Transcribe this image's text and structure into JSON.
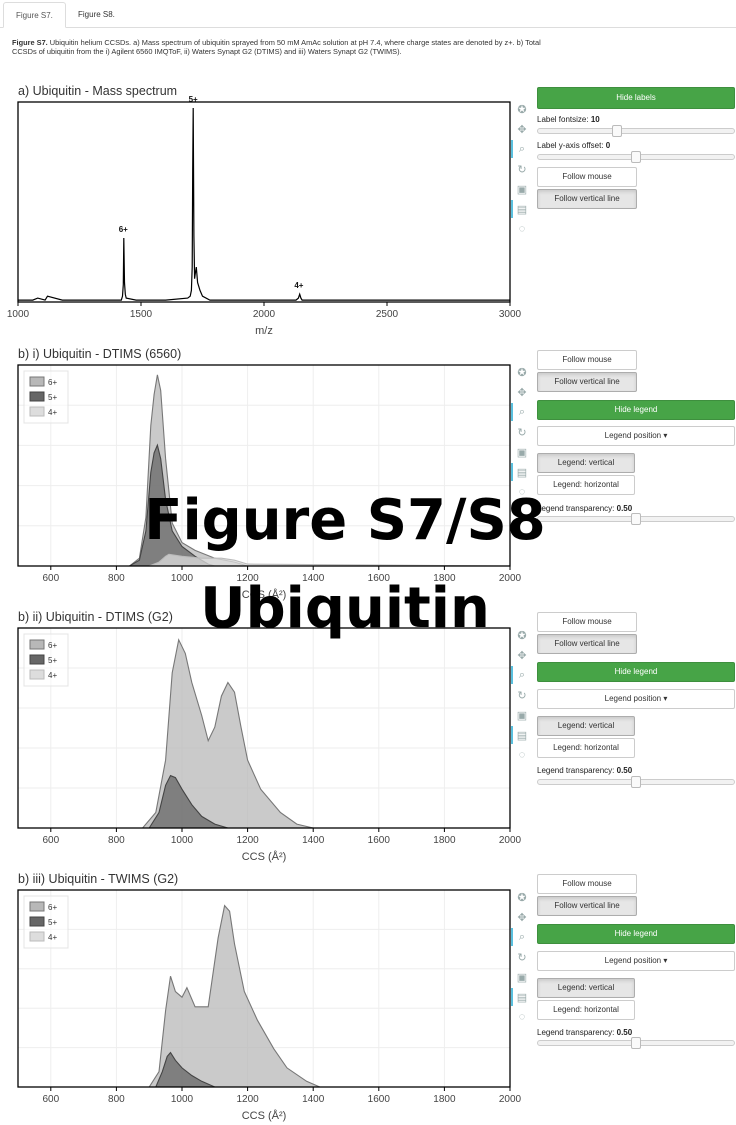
{
  "tabs": [
    {
      "label": "Figure S7."
    },
    {
      "label": "Figure S8."
    }
  ],
  "caption": {
    "bold": "Figure S7.",
    "text": " Ubiquitin helium CCSDs. a) Mass spectrum of ubiquitin sprayed from 50 mM AmAc solution at pH 7.4, where charge states are denoted by z+. b) Total CCSDs of ubiquitin from the i) Agilent 6560 IMQToF, ii) Waters Synapt G2 (DTIMS) and iii) Waters Synapt G2 (TWIMS)."
  },
  "overlay": {
    "line1": "Figure S7/S8",
    "line2": "Ubiquitin"
  },
  "colors": {
    "green": "#47a447",
    "legend_6": "#b8b8b8",
    "legend_5": "#666666",
    "legend_4": "#dddddd",
    "ms_line": "#000000"
  },
  "panels": [
    {
      "title": "a) Ubiquitin - Mass spectrum",
      "controls": {
        "hide_labels": "Hide labels",
        "fontsize_label": "Label fontsize:",
        "fontsize_value": "10",
        "yoffset_label": "Label y-axis offset:",
        "yoffset_value": "0",
        "follow_mouse": "Follow mouse",
        "follow_vertical": "Follow vertical line"
      }
    },
    {
      "title": "b) i) Ubiquitin - DTIMS (6560)",
      "controls": {
        "follow_mouse": "Follow mouse",
        "follow_vertical": "Follow vertical line",
        "hide_legend": "Hide legend",
        "legend_position": "Legend position",
        "legend_vertical": "Legend: vertical",
        "legend_horizontal": "Legend: horizontal",
        "transparency_label": "Legend transparency:",
        "transparency_value": "0.50"
      }
    },
    {
      "title": "b) ii) Ubiquitin - DTIMS (G2)",
      "controls": {
        "follow_mouse": "Follow mouse",
        "follow_vertical": "Follow vertical line",
        "hide_legend": "Hide legend",
        "legend_position": "Legend position",
        "legend_vertical": "Legend: vertical",
        "legend_horizontal": "Legend: horizontal",
        "transparency_label": "Legend transparency:",
        "transparency_value": "0.50"
      }
    },
    {
      "title": "b) iii) Ubiquitin - TWIMS (G2)",
      "controls": {
        "follow_mouse": "Follow mouse",
        "follow_vertical": "Follow vertical line",
        "hide_legend": "Hide legend",
        "legend_position": "Legend position",
        "legend_vertical": "Legend: vertical",
        "legend_horizontal": "Legend: horizontal",
        "transparency_label": "Legend transparency:",
        "transparency_value": "0.50"
      }
    }
  ],
  "chart_data": [
    {
      "type": "line",
      "title": "a) Ubiquitin - Mass spectrum",
      "xlabel": "m/z",
      "ylabel": "",
      "xlim": [
        1000,
        3000
      ],
      "ylim": [
        0,
        100
      ],
      "xticks": [
        1000,
        1500,
        2000,
        2500,
        3000
      ],
      "grid": false,
      "x": [
        1000,
        1060,
        1080,
        1110,
        1120,
        1180,
        1300,
        1400,
        1420,
        1425,
        1428,
        1430,
        1433,
        1436,
        1440,
        1480,
        1600,
        1690,
        1700,
        1705,
        1708,
        1710,
        1712,
        1715,
        1718,
        1720,
        1725,
        1730,
        1740,
        1750,
        1780,
        1900,
        2100,
        2130,
        2140,
        2145,
        2150,
        2155,
        2160,
        2190,
        2400,
        2600,
        2800,
        3000
      ],
      "y": [
        1,
        1,
        2,
        1,
        3,
        1,
        1,
        1,
        1,
        3,
        9,
        33,
        10,
        4,
        2,
        1,
        1,
        2,
        3,
        6,
        18,
        68,
        100,
        34,
        12,
        14,
        18,
        10,
        6,
        3,
        1,
        1,
        1,
        1,
        2,
        4,
        2,
        1,
        1,
        1,
        1,
        1,
        1,
        1
      ],
      "annotations": [
        {
          "label": "6+",
          "x": 1428,
          "y": 33
        },
        {
          "label": "5+",
          "x": 1712,
          "y": 100
        },
        {
          "label": "4+",
          "x": 2142,
          "y": 4
        }
      ]
    },
    {
      "type": "area",
      "title": "b) i) Ubiquitin - DTIMS (6560)",
      "xlabel": "CCS (Å²)",
      "ylabel": "",
      "xlim": [
        500,
        2000
      ],
      "ylim": [
        0,
        100
      ],
      "xticks": [
        600,
        800,
        1000,
        1200,
        1400,
        1600,
        1800,
        2000
      ],
      "grid": true,
      "legend_position": "top-left",
      "series": [
        {
          "name": "6+",
          "x": [
            500,
            840,
            870,
            890,
            905,
            915,
            925,
            935,
            950,
            970,
            1000,
            1040,
            1100,
            1160,
            1200,
            2000
          ],
          "y": [
            0,
            0,
            4,
            25,
            72,
            88,
            98,
            90,
            55,
            22,
            12,
            8,
            4,
            2,
            0,
            0
          ]
        },
        {
          "name": "5+",
          "x": [
            500,
            840,
            870,
            890,
            905,
            915,
            925,
            935,
            950,
            970,
            1000,
            1040,
            1080,
            1100,
            2000
          ],
          "y": [
            0,
            0,
            3,
            18,
            48,
            58,
            62,
            55,
            34,
            18,
            10,
            5,
            1,
            0,
            0
          ]
        },
        {
          "name": "4+",
          "x": [
            500,
            900,
            930,
            950,
            960,
            1000,
            1060,
            1120,
            1160,
            1200,
            2000
          ],
          "y": [
            0,
            0,
            2,
            5,
            6,
            5,
            4,
            4,
            3,
            1,
            0
          ]
        }
      ]
    },
    {
      "type": "area",
      "title": "b) ii) Ubiquitin - DTIMS (G2)",
      "xlabel": "CCS (Å²)",
      "ylabel": "",
      "xlim": [
        500,
        2000
      ],
      "ylim": [
        0,
        100
      ],
      "xticks": [
        600,
        800,
        1000,
        1200,
        1400,
        1600,
        1800,
        2000
      ],
      "grid": true,
      "legend_position": "top-left",
      "series": [
        {
          "name": "6+",
          "x": [
            500,
            880,
            920,
            950,
            970,
            990,
            1010,
            1030,
            1060,
            1080,
            1100,
            1120,
            1140,
            1160,
            1180,
            1200,
            1240,
            1300,
            1350,
            1400,
            2000
          ],
          "y": [
            0,
            0,
            8,
            35,
            80,
            97,
            90,
            75,
            58,
            45,
            52,
            68,
            75,
            70,
            52,
            35,
            20,
            8,
            2,
            0,
            0
          ]
        },
        {
          "name": "5+",
          "x": [
            500,
            900,
            930,
            950,
            965,
            980,
            1000,
            1030,
            1060,
            1100,
            1140,
            2000
          ],
          "y": [
            0,
            0,
            8,
            22,
            27,
            26,
            20,
            12,
            6,
            2,
            0,
            0
          ]
        },
        {
          "name": "4+",
          "x": [
            500,
            2000
          ],
          "y": [
            0,
            0
          ]
        }
      ]
    },
    {
      "type": "area",
      "title": "b) iii) Ubiquitin - TWIMS (G2)",
      "xlabel": "CCS (Å²)",
      "ylabel": "",
      "xlim": [
        500,
        2000
      ],
      "ylim": [
        0,
        100
      ],
      "xticks": [
        600,
        800,
        1000,
        1200,
        1400,
        1600,
        1800,
        2000
      ],
      "grid": true,
      "legend_position": "top-left",
      "series": [
        {
          "name": "6+",
          "x": [
            500,
            900,
            930,
            950,
            965,
            980,
            1000,
            1015,
            1040,
            1080,
            1110,
            1130,
            1145,
            1160,
            1190,
            1230,
            1280,
            1320,
            1380,
            1420,
            2000
          ],
          "y": [
            0,
            0,
            8,
            40,
            58,
            50,
            47,
            52,
            42,
            42,
            78,
            95,
            92,
            75,
            50,
            35,
            20,
            10,
            3,
            0,
            0
          ]
        },
        {
          "name": "5+",
          "x": [
            500,
            920,
            940,
            955,
            965,
            980,
            1000,
            1030,
            1060,
            1100,
            2000
          ],
          "y": [
            0,
            0,
            8,
            16,
            18,
            14,
            10,
            6,
            3,
            0,
            0
          ]
        },
        {
          "name": "4+",
          "x": [
            500,
            2000
          ],
          "y": [
            0,
            0
          ]
        }
      ]
    }
  ]
}
